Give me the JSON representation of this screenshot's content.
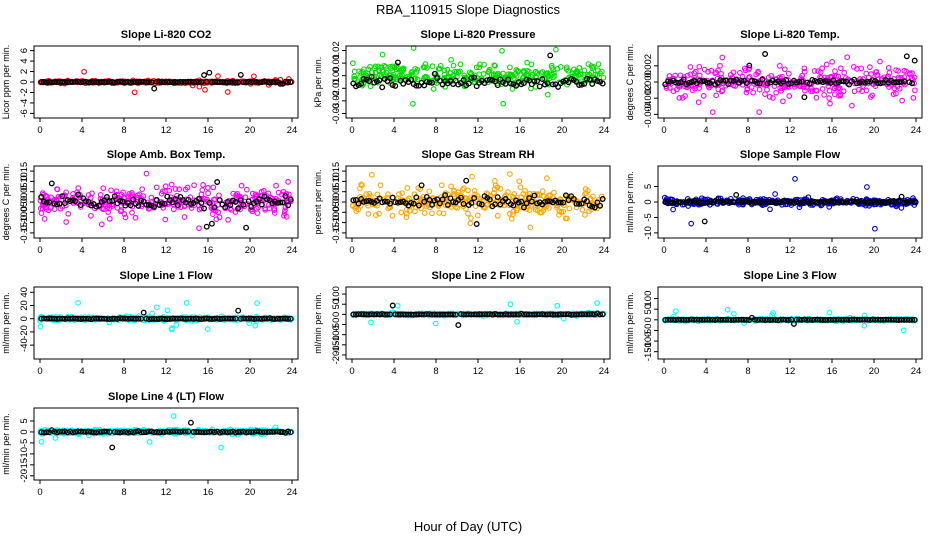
{
  "title": "RBA_110915  Slope Diagnostics",
  "xlabel": "Hour of Day (UTC)",
  "chart_data": [
    {
      "type": "scatter",
      "title": "Slope Li-820 CO2",
      "ylabel": "Licor ppm per min.",
      "color": "#ff0000",
      "spread": 0.25,
      "outlier": 2.0,
      "black_spread": 0.15,
      "xlim": [
        0,
        24
      ],
      "ylim": [
        -6.5,
        6.5
      ],
      "yticks": [
        -6,
        -4,
        -2,
        0,
        2,
        4,
        6
      ],
      "yticklabels": [
        "-6",
        "-4",
        "-2",
        "0",
        "2",
        "4",
        "6"
      ],
      "xticks": [
        0,
        4,
        8,
        12,
        16,
        20,
        24
      ],
      "xticklabels": [
        "0",
        "4",
        "8",
        "12",
        "16",
        "20",
        "24"
      ]
    },
    {
      "type": "scatter",
      "title": "Slope Li-820 Pressure",
      "ylabel": "kPa per min.",
      "color": "#00dd00",
      "spread": 0.009,
      "outlier": 0.025,
      "black_spread": 0.006,
      "black_offset": -0.005,
      "xlim": [
        0,
        24
      ],
      "ylim": [
        -0.032,
        0.022
      ],
      "yticks": [
        0.02,
        0.01,
        0,
        -0.01,
        -0.02,
        -0.03
      ],
      "yticklabels": [
        "0.02",
        "0.01",
        "0.00",
        "-0.01",
        "-0.02",
        "-0.03"
      ],
      "xticks": [
        0,
        4,
        8,
        12,
        16,
        20,
        24
      ],
      "xticklabels": [
        "0",
        "4",
        "8",
        "12",
        "16",
        "20",
        "24"
      ]
    },
    {
      "type": "scatter",
      "title": "Slope Li-820 Temp.",
      "ylabel": "degrees C per min.",
      "color": "#ff00ff",
      "spread": 0.0018,
      "outlier": 0.004,
      "black_spread": 0.0005,
      "xlim": [
        0,
        24
      ],
      "ylim": [
        -0.0042,
        0.0042
      ],
      "yticks": [
        0.002,
        0,
        -0.002,
        -0.004
      ],
      "yticklabels": [
        "0.002",
        "0.000",
        "-0.002",
        "-0.004"
      ],
      "xticks": [
        0,
        4,
        8,
        12,
        16,
        20,
        24
      ],
      "xticklabels": [
        "0",
        "4",
        "8",
        "12",
        "16",
        "20",
        "24"
      ]
    },
    {
      "type": "scatter",
      "title": "Slope Amb. Box Temp.",
      "ylabel": "degrees C per min.",
      "color": "#ff00ff",
      "spread": 0.07,
      "outlier": 0.14,
      "black_spread": 0.05,
      "xlim": [
        0,
        24
      ],
      "ylim": [
        -0.165,
        0.165
      ],
      "yticks": [
        0.15,
        0.1,
        0.05,
        0,
        -0.05,
        -0.1,
        -0.15
      ],
      "yticklabels": [
        "0.15",
        "0.10",
        "0.05",
        "0.00",
        "-0.05",
        "-0.10",
        "-0.15"
      ],
      "xticks": [
        0,
        4,
        8,
        12,
        16,
        20,
        24
      ],
      "xticklabels": [
        "0",
        "4",
        "8",
        "12",
        "16",
        "20",
        "24"
      ]
    },
    {
      "type": "scatter",
      "title": "Slope Gas Stream RH",
      "ylabel": "percent per min.",
      "color": "#ffa500",
      "spread": 0.07,
      "outlier": 0.14,
      "black_spread": 0.05,
      "xlim": [
        0,
        24
      ],
      "ylim": [
        -0.165,
        0.165
      ],
      "yticks": [
        0.15,
        0.1,
        0.05,
        0,
        -0.05,
        -0.1,
        -0.15
      ],
      "yticklabels": [
        "0.15",
        "0.10",
        "0.05",
        "0.00",
        "-0.05",
        "-0.10",
        "-0.15"
      ],
      "xticks": [
        0,
        4,
        8,
        12,
        16,
        20,
        24
      ],
      "xticklabels": [
        "0",
        "4",
        "8",
        "12",
        "16",
        "20",
        "24"
      ]
    },
    {
      "type": "scatter",
      "title": "Slope Sample Flow",
      "ylabel": "ml/min per min.",
      "color": "#0000cc",
      "spread": 1.2,
      "outlier": 9.0,
      "black_spread": 0.6,
      "xlim": [
        0,
        24
      ],
      "ylim": [
        -11,
        11
      ],
      "yticks": [
        5,
        0,
        -5,
        -10
      ],
      "yticklabels": [
        "5",
        "0",
        "-5",
        "-10"
      ],
      "xticks": [
        0,
        4,
        8,
        12,
        16,
        20,
        24
      ],
      "xticklabels": [
        "0",
        "4",
        "8",
        "12",
        "16",
        "20",
        "24"
      ]
    },
    {
      "type": "scatter",
      "title": "Slope Line 1 Flow",
      "ylabel": "ml/min per min.",
      "color": "#00ffff",
      "spread": 3.0,
      "outlier": 25.0,
      "black_spread": 1.0,
      "xlim": [
        0,
        24
      ],
      "ylim": [
        -58,
        45
      ],
      "yticks": [
        40,
        20,
        0,
        -20,
        -40
      ],
      "yticklabels": [
        "40",
        "20",
        "0",
        "-20",
        "-40"
      ],
      "xticks": [
        0,
        4,
        8,
        12,
        16,
        20,
        24
      ],
      "xticklabels": [
        "0",
        "4",
        "8",
        "12",
        "16",
        "20",
        "24"
      ]
    },
    {
      "type": "scatter",
      "title": "Slope Line 2 Flow",
      "ylabel": "ml/min per min.",
      "color": "#00ffff",
      "spread": 6.0,
      "outlier": 60.0,
      "black_spread": 3.0,
      "xlim": [
        0,
        24
      ],
      "ylim": [
        -210,
        125
      ],
      "yticks": [
        100,
        50,
        0,
        -50,
        -100,
        -150,
        -200
      ],
      "yticklabels": [
        "100",
        "50",
        "0",
        "-50",
        "-100",
        "-150",
        "-200"
      ],
      "xticks": [
        0,
        4,
        8,
        12,
        16,
        20,
        24
      ],
      "xticklabels": [
        "0",
        "4",
        "8",
        "12",
        "16",
        "20",
        "24"
      ]
    },
    {
      "type": "scatter",
      "title": "Slope Line 3 Flow",
      "ylabel": "ml/min per min.",
      "color": "#00ffff",
      "spread": 5.0,
      "outlier": 50.0,
      "black_spread": 2.5,
      "xlim": [
        0,
        24
      ],
      "ylim": [
        -175,
        145
      ],
      "yticks": [
        100,
        50,
        0,
        -50,
        -100,
        -150
      ],
      "yticklabels": [
        "100",
        "50",
        "0",
        "-50",
        "-100",
        "-150"
      ],
      "xticks": [
        0,
        4,
        8,
        12,
        16,
        20,
        24
      ],
      "xticklabels": [
        "0",
        "4",
        "8",
        "12",
        "16",
        "20",
        "24"
      ]
    },
    {
      "type": "scatter",
      "title": "Slope Line 4 (LT) Flow",
      "ylabel": "ml/min per min.",
      "color": "#00ffff",
      "spread": 1.0,
      "outlier": 8.0,
      "black_spread": 0.5,
      "xlim": [
        0,
        24
      ],
      "ylim": [
        -21,
        10
      ],
      "yticks": [
        5,
        0,
        -5,
        -10,
        -15,
        -20
      ],
      "yticklabels": [
        "5",
        "0",
        "-5",
        "-10",
        "-15",
        "-20"
      ],
      "xticks": [
        0,
        4,
        8,
        12,
        16,
        20,
        24
      ],
      "xticklabels": [
        "0",
        "4",
        "8",
        "12",
        "16",
        "20",
        "24"
      ]
    }
  ]
}
